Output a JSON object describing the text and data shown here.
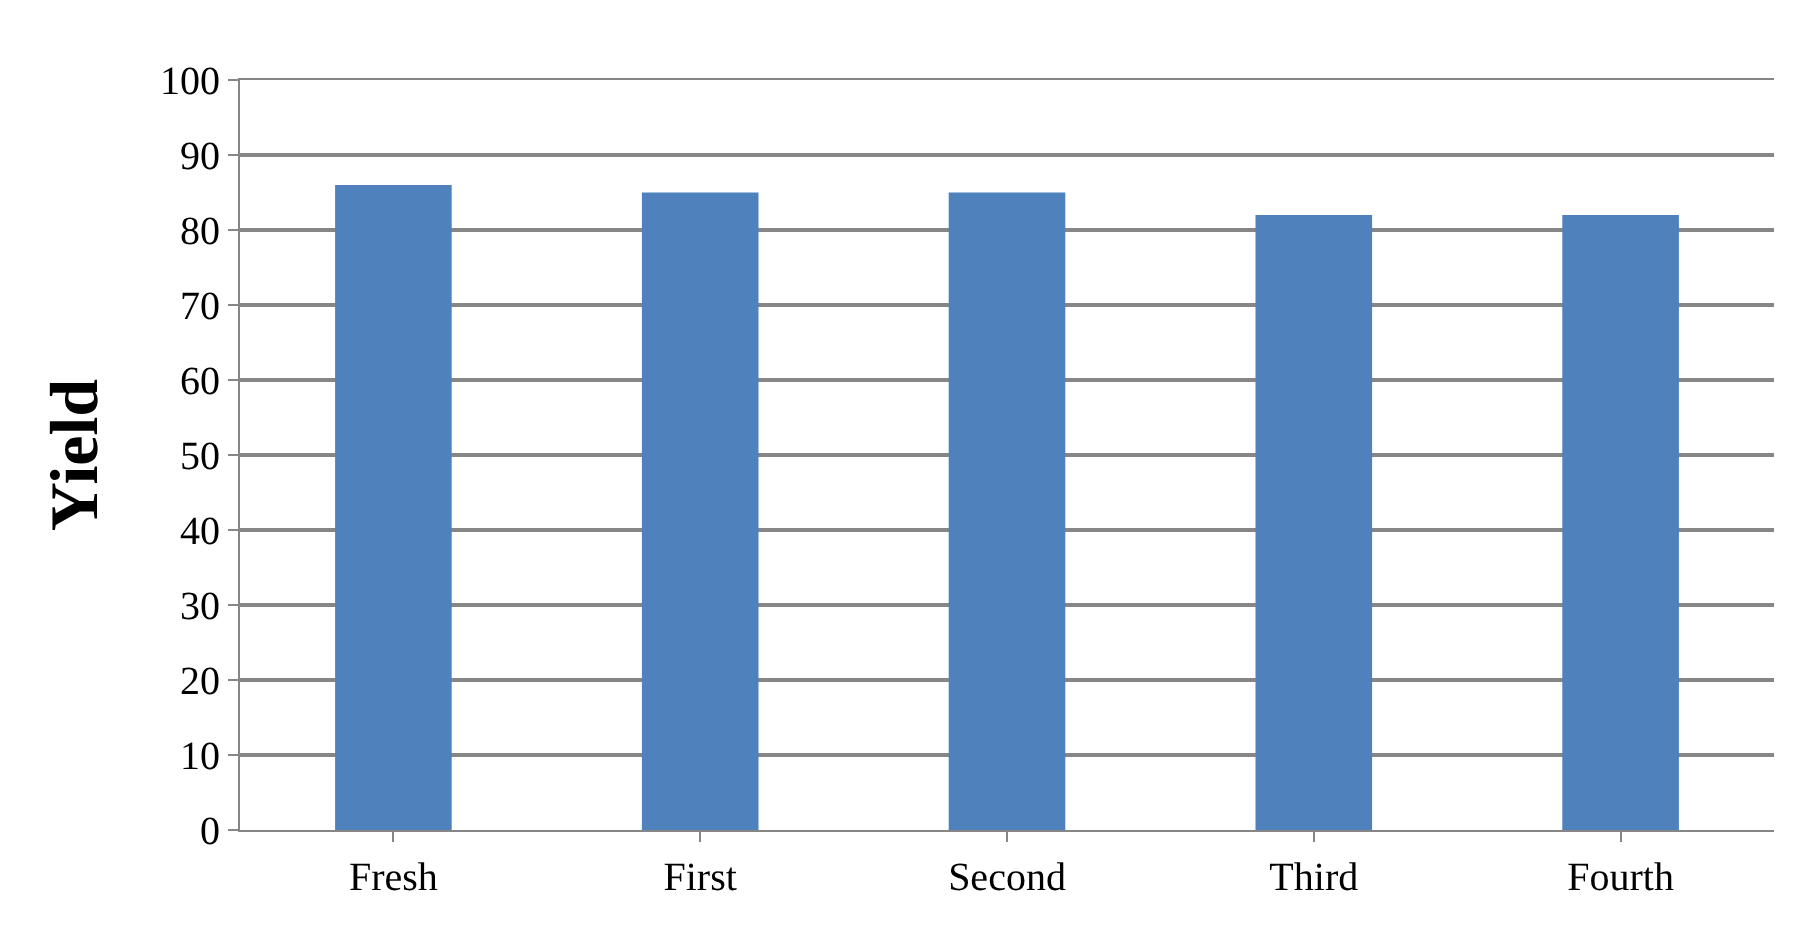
{
  "chart_data": {
    "type": "bar",
    "ylabel": "Yield",
    "categories": [
      "Fresh",
      "First",
      "Second",
      "Third",
      "Fourth"
    ],
    "values": [
      86,
      85,
      85,
      82,
      82
    ],
    "color": "#4f81bd",
    "ylim": [
      0,
      100
    ],
    "yticks": [
      0,
      10,
      20,
      30,
      40,
      50,
      60,
      70,
      80,
      90,
      100
    ],
    "grid": "y"
  }
}
